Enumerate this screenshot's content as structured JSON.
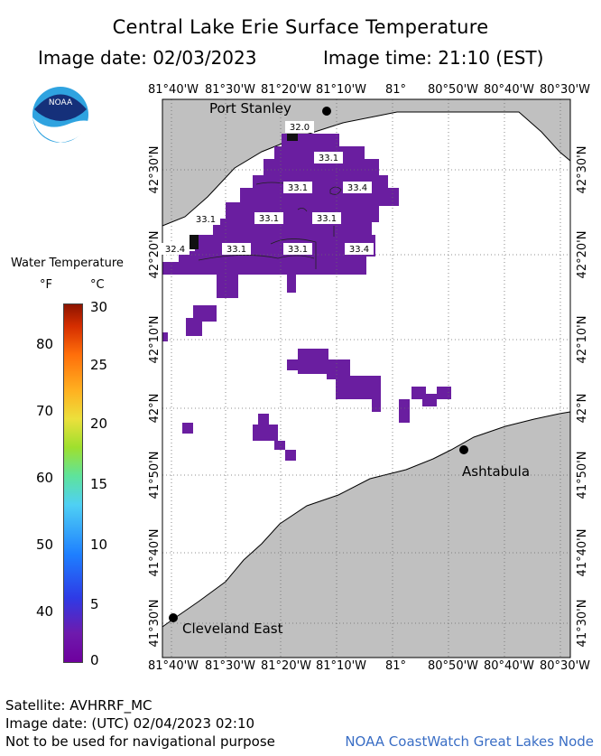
{
  "header": {
    "title": "Central Lake Erie Surface Temperature",
    "image_date": "Image date: 02/03/2023",
    "image_time": "Image time: 21:10 (EST)"
  },
  "logo": {
    "text": "NOAA",
    "icon": "noaa-logo-icon"
  },
  "axes": {
    "longitude_ticks": [
      "81°40'W",
      "81°30'W",
      "81°20'W",
      "81°10'W",
      "81°",
      "80°50'W",
      "80°40'W",
      "80°30'W"
    ],
    "latitude_ticks": [
      "42°30'N",
      "42°20'N",
      "42°10'N",
      "42°N",
      "41°50'N",
      "41°40'N",
      "41°30'N"
    ]
  },
  "places": {
    "port_stanley": "Port Stanley",
    "ashtabula": "Ashtabula",
    "cleveland_east": "Cleveland East"
  },
  "temperature_labels": [
    "32.0",
    "33.1",
    "33.1",
    "33.4",
    "33.1",
    "33.1",
    "33.1",
    "32.4",
    "33.1",
    "33.1",
    "33.4"
  ],
  "legend": {
    "title": "Water Temperature",
    "unit_f": "°F",
    "unit_c": "°C",
    "fahrenheit_ticks": [
      "80",
      "70",
      "60",
      "50",
      "40"
    ],
    "celsius_ticks": [
      "30",
      "25",
      "20",
      "15",
      "10",
      "5",
      "0"
    ]
  },
  "footer": {
    "satellite": "Satellite: AVHRRF_MC",
    "utc_date": "Image date: (UTC) 02/04/2023  02:10",
    "disclaimer": "Not to be used for navigational purpose",
    "credit": "NOAA CoastWatch Great Lakes Node"
  },
  "colors": {
    "land": "#c0c0c0",
    "water_data": "#6a1ea0",
    "water_dark": "#5a148e",
    "grid": "#6b6b6b"
  }
}
